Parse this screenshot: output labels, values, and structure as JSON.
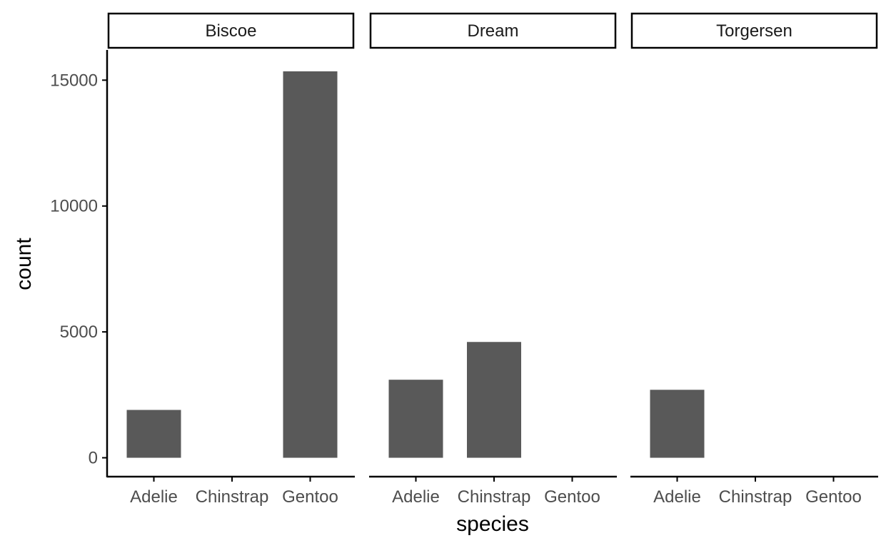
{
  "chart_data": {
    "type": "bar",
    "xlabel": "species",
    "ylabel": "count",
    "ylim": [
      -750,
      16200
    ],
    "yticks": [
      0,
      5000,
      10000,
      15000
    ],
    "categories": [
      "Adelie",
      "Chinstrap",
      "Gentoo"
    ],
    "panels": [
      {
        "facet": "Biscoe",
        "values": [
          1900,
          0,
          15350
        ]
      },
      {
        "facet": "Dream",
        "values": [
          3100,
          4600,
          0
        ]
      },
      {
        "facet": "Torgersen",
        "values": [
          2700,
          0,
          0
        ]
      }
    ],
    "colors": {
      "bar": "#595959",
      "axis": "#000000",
      "tick_text": "#4d4d4d"
    }
  }
}
